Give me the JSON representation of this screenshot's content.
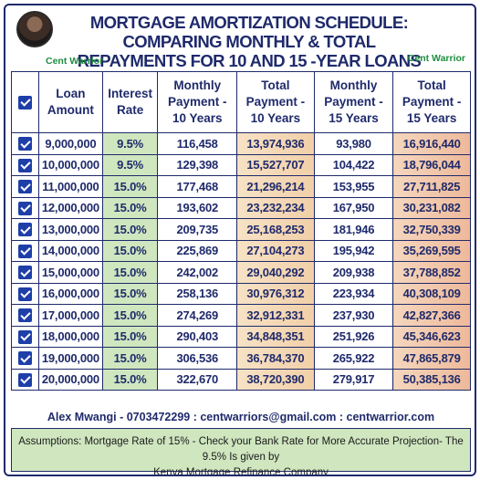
{
  "header": {
    "title_line1": "MORTGAGE AMORTIZATION SCHEDULE: COMPARING MONTHLY & TOTAL",
    "title_line2": "REPAYMENTS FOR 10 AND 15 -YEAR LOANS",
    "brand_left": "Cent Warrior",
    "brand_right": "Cent Warrior"
  },
  "colors": {
    "navy": "#1f2a6b",
    "rate_green": "#cfe6bf",
    "total_peach": "#f1cfa8",
    "checkbox_blue": "#1f3fa8"
  },
  "table": {
    "columns": [
      "Loan Amount",
      "Interest Rate",
      "Monthly Payment - 10 Years",
      "Total Payment - 10 Years",
      "Monthly Payment - 15 Years",
      "Total Payment - 15 Years"
    ],
    "rows": [
      [
        "9,000,000",
        "9.5%",
        "116,458",
        "13,974,936",
        "93,980",
        "16,916,440"
      ],
      [
        "10,000,000",
        "9.5%",
        "129,398",
        "15,527,707",
        "104,422",
        "18,796,044"
      ],
      [
        "11,000,000",
        "15.0%",
        "177,468",
        "21,296,214",
        "153,955",
        "27,711,825"
      ],
      [
        "12,000,000",
        "15.0%",
        "193,602",
        "23,232,234",
        "167,950",
        "30,231,082"
      ],
      [
        "13,000,000",
        "15.0%",
        "209,735",
        "25,168,253",
        "181,946",
        "32,750,339"
      ],
      [
        "14,000,000",
        "15.0%",
        "225,869",
        "27,104,273",
        "195,942",
        "35,269,595"
      ],
      [
        "15,000,000",
        "15.0%",
        "242,002",
        "29,040,292",
        "209,938",
        "37,788,852"
      ],
      [
        "16,000,000",
        "15.0%",
        "258,136",
        "30,976,312",
        "223,934",
        "40,308,109"
      ],
      [
        "17,000,000",
        "15.0%",
        "274,269",
        "32,912,331",
        "237,930",
        "42,827,366"
      ],
      [
        "18,000,000",
        "15.0%",
        "290,403",
        "34,848,351",
        "251,926",
        "45,346,623"
      ],
      [
        "19,000,000",
        "15.0%",
        "306,536",
        "36,784,370",
        "265,922",
        "47,865,879"
      ],
      [
        "20,000,000",
        "15.0%",
        "322,670",
        "38,720,390",
        "279,917",
        "50,385,136"
      ]
    ]
  },
  "contact": "Alex Mwangi - 0703472299 : centwarriors@gmail.com : centwarrior.com",
  "note": {
    "line1": "Assumptions: Mortgage Rate of 15% - Check your Bank Rate for More Accurate Projection- The 9.5% Is given by",
    "line2": "Kenya Mortgage Refinance Company"
  }
}
